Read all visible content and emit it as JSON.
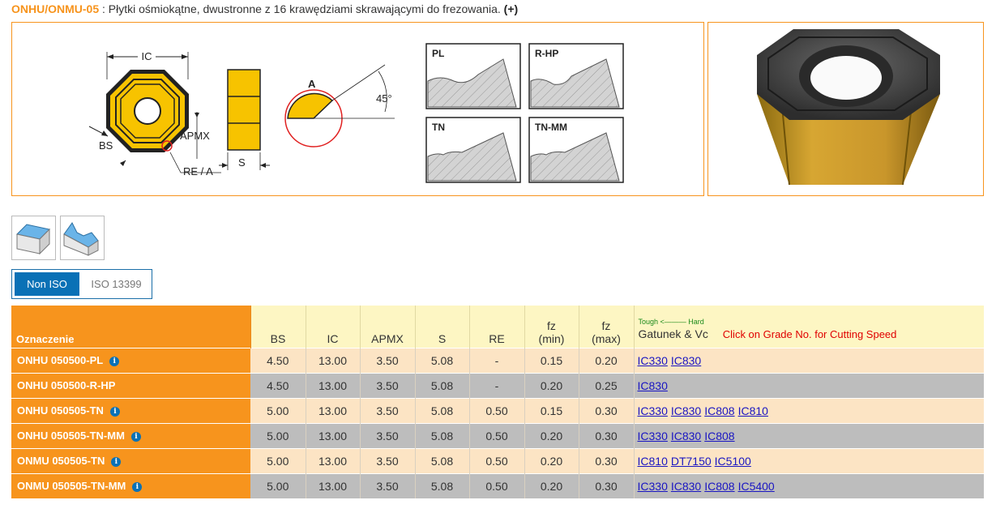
{
  "header": {
    "code": "ONHU/ONMU-05",
    "separator": " : ",
    "description": "Płytki ośmiokątne, dwustronne z 16 krawędziami skrawającymi do frezowania.",
    "plus": "(+)"
  },
  "drawing": {
    "ic": "IC",
    "bs": "BS",
    "apmx": "APMX",
    "re_a": "RE / A",
    "s": "S",
    "a": "A",
    "angle": "45°",
    "profiles": [
      "PL",
      "R-HP",
      "TN",
      "TN-MM"
    ]
  },
  "standards": {
    "active": "Non ISO",
    "inactive": "ISO 13399"
  },
  "table": {
    "headers": {
      "name": "Oznaczenie",
      "bs": "BS",
      "ic": "IC",
      "apmx": "APMX",
      "s": "S",
      "re": "RE",
      "fz_min_1": "fz",
      "fz_min_2": "(min)",
      "fz_max_1": "fz",
      "fz_max_2": "(max)",
      "tough_hard": "Tough <——— Hard",
      "grade": "Gatunek & Vc",
      "click": "Click on Grade No. for Cutting Speed"
    },
    "rows": [
      {
        "name": "ONHU 050500-PL",
        "bs": "4.50",
        "ic": "13.00",
        "apmx": "3.50",
        "s": "5.08",
        "re": "-",
        "fzmin": "0.15",
        "fzmax": "0.20",
        "grades": [
          "IC330",
          "IC830"
        ]
      },
      {
        "name": "ONHU 050500-R-HP",
        "bs": "4.50",
        "ic": "13.00",
        "apmx": "3.50",
        "s": "5.08",
        "re": "-",
        "fzmin": "0.20",
        "fzmax": "0.25",
        "grades": [
          "IC830"
        ]
      },
      {
        "name": "ONHU 050505-TN",
        "bs": "5.00",
        "ic": "13.00",
        "apmx": "3.50",
        "s": "5.08",
        "re": "0.50",
        "fzmin": "0.15",
        "fzmax": "0.30",
        "grades": [
          "IC330",
          "IC830",
          "IC808",
          "IC810"
        ]
      },
      {
        "name": "ONHU 050505-TN-MM",
        "bs": "5.00",
        "ic": "13.00",
        "apmx": "3.50",
        "s": "5.08",
        "re": "0.50",
        "fzmin": "0.20",
        "fzmax": "0.30",
        "grades": [
          "IC330",
          "IC830",
          "IC808"
        ]
      },
      {
        "name": "ONMU 050505-TN",
        "bs": "5.00",
        "ic": "13.00",
        "apmx": "3.50",
        "s": "5.08",
        "re": "0.50",
        "fzmin": "0.20",
        "fzmax": "0.30",
        "grades": [
          "IC810",
          "DT7150",
          "IC5100"
        ]
      },
      {
        "name": "ONMU 050505-TN-MM",
        "bs": "5.00",
        "ic": "13.00",
        "apmx": "3.50",
        "s": "5.08",
        "re": "0.50",
        "fzmin": "0.20",
        "fzmax": "0.30",
        "grades": [
          "IC330",
          "IC830",
          "IC808",
          "IC5400"
        ]
      }
    ]
  },
  "colors": {
    "orange": "#f7941d",
    "header_yellow": "#fdf6c3",
    "row_light": "#fce4c4",
    "row_dark": "#bdbdbd",
    "link": "#1a16c2",
    "tab_blue": "#0a71b6"
  }
}
